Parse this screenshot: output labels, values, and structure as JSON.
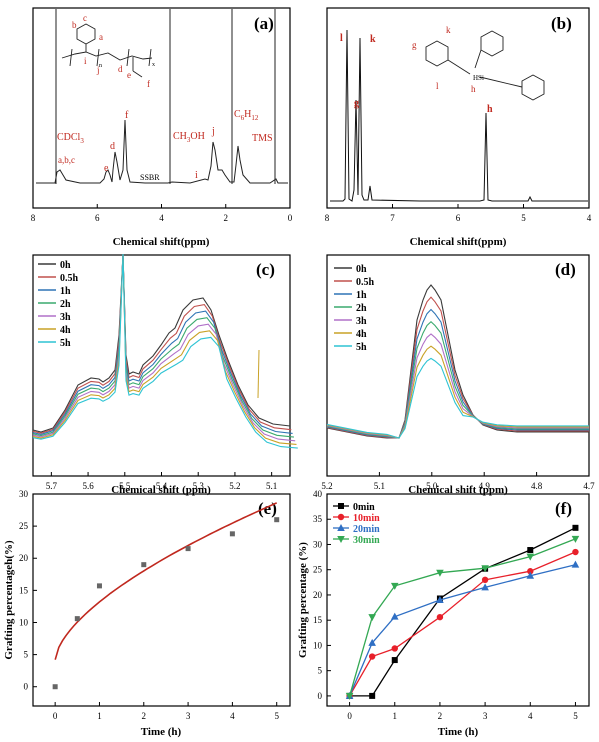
{
  "panel_labels": [
    "(a)",
    "(b)",
    "(c)",
    "(d)",
    "(e)",
    "(f)"
  ],
  "xlabels": {
    "a": "Chemical shift(ppm)",
    "b": "Chemical shift(ppm)",
    "c": "Chemical shift (ppm)",
    "d": "Chemical shift (ppm)",
    "e": "Time (h)",
    "f": "Time (h)"
  },
  "ylabels": {
    "e": "Grafting percentageh(%)",
    "f": "Grafting percentage (%)"
  },
  "annotations_a": {
    "cdcl3": "CDCl",
    "cdcl3_sub": "3",
    "abc": "a,b,c",
    "e": "e",
    "d": "d",
    "f": "f",
    "ssbr": "SSBR",
    "ch3oh": "CH",
    "ch3oh_sub": "3",
    "ch3oh_tail": "OH",
    "i": "i",
    "j": "j",
    "c6h12": "C",
    "c6h12_sub1": "6",
    "c6h12_mid": "H",
    "c6h12_sub2": "12",
    "tms": "TMS",
    "struct_b": "b",
    "struct_c": "c",
    "struct_a": "a",
    "struct_i": "i",
    "struct_j": "j",
    "struct_d": "d",
    "struct_e": "e",
    "struct_f": "f",
    "struct_n": "n",
    "struct_x": "x"
  },
  "annotations_b": {
    "l": "l",
    "k": "k",
    "g": "g",
    "h": "h",
    "struct_k": "k",
    "struct_g": "g",
    "struct_l": "l",
    "struct_h": "h",
    "si": "HSi"
  },
  "legend_time": [
    "0h",
    "0.5h",
    "1h",
    "2h",
    "3h",
    "4h",
    "5h"
  ],
  "legend_min": [
    "0min",
    "10min",
    "20min",
    "30min"
  ],
  "colors": {
    "t0": "#3a3a3a",
    "t05": "#c0504d",
    "t1": "#2e74b5",
    "t2": "#3aaa6e",
    "t3": "#b070c8",
    "t4": "#c9a227",
    "t5": "#2fc4d4",
    "m0": "#000000",
    "m10": "#e8202a",
    "m20": "#2f6fc4",
    "m30": "#33a853",
    "fit": "#c0281e",
    "ann": "#c0281e"
  },
  "chart_data": [
    {
      "panel": "a",
      "type": "line",
      "xlabel": "Chemical shift(ppm)",
      "xlim": [
        8,
        0
      ],
      "xticks": [
        "8",
        "6",
        "4",
        "2",
        "0"
      ]
    },
    {
      "panel": "b",
      "type": "line",
      "xlabel": "Chemical shift(ppm)",
      "xlim": [
        8,
        4
      ],
      "xticks": [
        "8",
        "7",
        "6",
        "5",
        "4"
      ]
    },
    {
      "panel": "c",
      "type": "line",
      "xlabel": "Chemical shift (ppm)",
      "xlim": [
        5.75,
        5.05
      ],
      "xticks": [
        "5.7",
        "5.6",
        "5.5",
        "5.4",
        "5.3",
        "5.2",
        "5.1"
      ],
      "series_names": [
        "0h",
        "0.5h",
        "1h",
        "2h",
        "3h",
        "4h",
        "5h"
      ]
    },
    {
      "panel": "d",
      "type": "line",
      "xlabel": "Chemical shift (ppm)",
      "xlim": [
        5.2,
        4.7
      ],
      "xticks": [
        "5.2",
        "5.1",
        "5.0",
        "4.9",
        "4.8",
        "4.7"
      ],
      "series_names": [
        "0h",
        "0.5h",
        "1h",
        "2h",
        "3h",
        "4h",
        "5h"
      ]
    },
    {
      "panel": "e",
      "type": "scatter",
      "xlabel": "Time (h)",
      "ylabel": "Grafting percentageh(%)",
      "xlim": [
        -0.5,
        5.3
      ],
      "ylim": [
        -3,
        30
      ],
      "xticks": [
        "0",
        "1",
        "2",
        "3",
        "4",
        "5"
      ],
      "yticks": [
        "0",
        "5",
        "10",
        "15",
        "20",
        "25",
        "30"
      ],
      "x": [
        0,
        0.5,
        1,
        2,
        3,
        4,
        5
      ],
      "y": [
        0,
        10.6,
        15.7,
        19.0,
        21.5,
        23.8,
        26.0
      ],
      "fit": true
    },
    {
      "panel": "f",
      "type": "line",
      "xlabel": "Time (h)",
      "ylabel": "Grafting percentage (%)",
      "xlim": [
        -0.5,
        5.3
      ],
      "ylim": [
        -2,
        40
      ],
      "xticks": [
        "0",
        "1",
        "2",
        "3",
        "4",
        "5"
      ],
      "yticks": [
        "0",
        "5",
        "10",
        "15",
        "20",
        "25",
        "30",
        "35",
        "40"
      ],
      "x": [
        0,
        0.5,
        1,
        2,
        3,
        4,
        5
      ],
      "series": [
        {
          "name": "0min",
          "values": [
            0,
            0,
            7.1,
            19.3,
            25.2,
            28.9,
            33.3
          ]
        },
        {
          "name": "10min",
          "values": [
            0,
            7.8,
            9.4,
            15.6,
            23.0,
            24.7,
            28.5
          ]
        },
        {
          "name": "20min",
          "values": [
            0,
            10.5,
            15.7,
            19.0,
            21.5,
            23.8,
            26.0
          ]
        },
        {
          "name": "30min",
          "values": [
            0,
            15.6,
            21.8,
            24.4,
            25.3,
            27.6,
            31.1
          ]
        }
      ]
    }
  ]
}
